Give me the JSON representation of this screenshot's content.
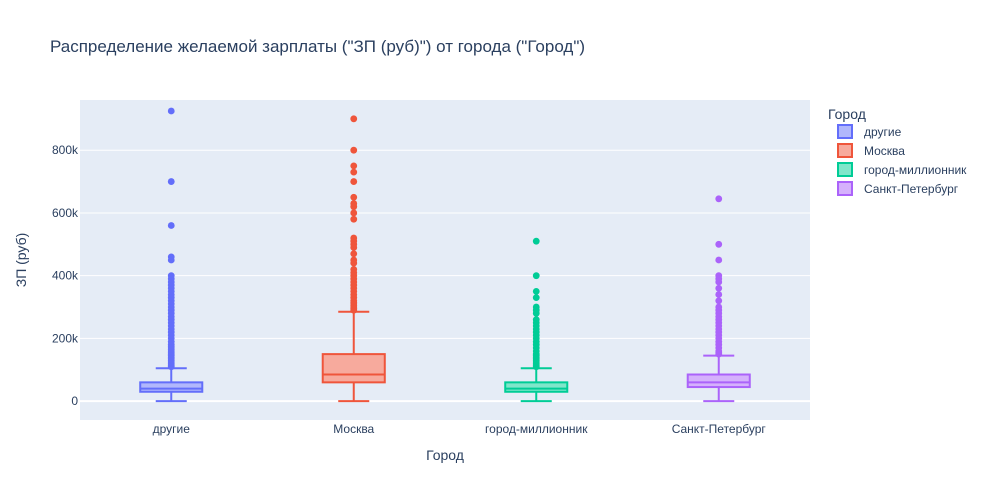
{
  "chart_data": {
    "type": "box",
    "title": "Распределение желаемой зарплаты (\"ЗП (руб)\") от города (\"Город\")",
    "xlabel": "Город",
    "ylabel": "ЗП (руб)",
    "ylim": [
      -60000,
      960000
    ],
    "yticks": [
      0,
      200000,
      400000,
      600000,
      800000
    ],
    "ytick_labels": [
      "0",
      "200k",
      "400k",
      "600k",
      "800k"
    ],
    "grid": true,
    "legend": {
      "title": "Город",
      "position": "top-right"
    },
    "categories": [
      "другие",
      "Москва",
      "город-миллионник",
      "Санкт-Петербург"
    ],
    "series": [
      {
        "name": "другие",
        "color": "#636efa",
        "fill": "#b1b7fc",
        "min": 0,
        "q1": 30000,
        "median": 40000,
        "q3": 60000,
        "max": 105000,
        "outliers": [
          110000,
          115000,
          120000,
          125000,
          130000,
          135000,
          140000,
          145000,
          150000,
          155000,
          160000,
          165000,
          170000,
          175000,
          180000,
          190000,
          200000,
          210000,
          220000,
          230000,
          240000,
          250000,
          260000,
          270000,
          280000,
          290000,
          300000,
          310000,
          320000,
          330000,
          340000,
          350000,
          360000,
          370000,
          380000,
          390000,
          400000,
          450000,
          460000,
          560000,
          700000,
          925000
        ]
      },
      {
        "name": "Москва",
        "color": "#ef553b",
        "fill": "#f7aa9d",
        "min": 0,
        "q1": 60000,
        "median": 85000,
        "q3": 150000,
        "max": 285000,
        "outliers": [
          290000,
          295000,
          300000,
          305000,
          310000,
          315000,
          320000,
          330000,
          340000,
          350000,
          360000,
          370000,
          380000,
          390000,
          400000,
          410000,
          420000,
          440000,
          450000,
          470000,
          490000,
          500000,
          510000,
          520000,
          580000,
          600000,
          620000,
          630000,
          650000,
          700000,
          730000,
          750000,
          800000,
          900000
        ]
      },
      {
        "name": "город-миллионник",
        "color": "#00cc96",
        "fill": "#80e6ca",
        "min": 0,
        "q1": 30000,
        "median": 40000,
        "q3": 60000,
        "max": 105000,
        "outliers": [
          110000,
          115000,
          120000,
          125000,
          130000,
          135000,
          140000,
          145000,
          150000,
          160000,
          170000,
          180000,
          190000,
          200000,
          210000,
          220000,
          230000,
          240000,
          250000,
          260000,
          280000,
          290000,
          300000,
          330000,
          350000,
          400000,
          510000
        ]
      },
      {
        "name": "Санкт-Петербург",
        "color": "#ab63fa",
        "fill": "#d5b1fc",
        "min": 0,
        "q1": 45000,
        "median": 60000,
        "q3": 85000,
        "max": 145000,
        "outliers": [
          150000,
          155000,
          160000,
          170000,
          180000,
          190000,
          200000,
          210000,
          220000,
          230000,
          240000,
          250000,
          260000,
          270000,
          280000,
          290000,
          300000,
          320000,
          340000,
          360000,
          380000,
          390000,
          400000,
          450000,
          500000,
          645000
        ]
      }
    ]
  }
}
